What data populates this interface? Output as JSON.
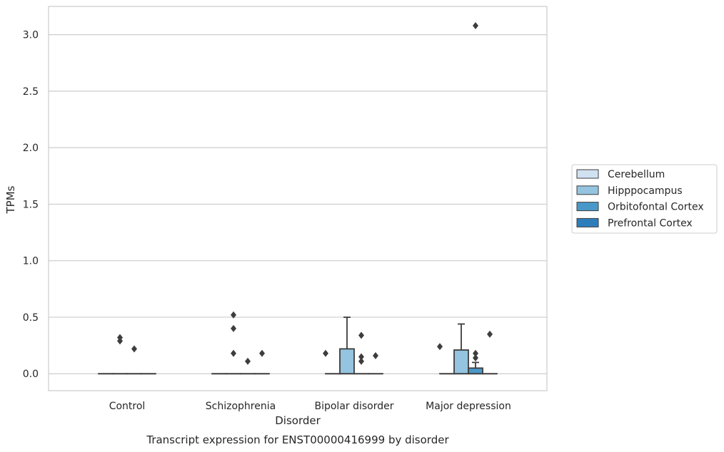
{
  "chart_data": {
    "type": "boxplot",
    "title": "",
    "caption": "Transcript expression for ENST00000416999 by disorder",
    "xlabel": "Disorder",
    "ylabel": "TPMs",
    "ylim": [
      -0.15,
      3.25
    ],
    "yticks": [
      0.0,
      0.5,
      1.0,
      1.5,
      2.0,
      2.5,
      3.0
    ],
    "ytick_labels": [
      "0.0",
      "0.5",
      "1.0",
      "1.5",
      "2.0",
      "2.5",
      "3.0"
    ],
    "grid": "horizontal",
    "legend_position": "right",
    "categories": [
      "Control",
      "Schizophrenia",
      "Bipolar disorder",
      "Major depression"
    ],
    "series": [
      {
        "name": "Cerebellum",
        "color": "#d0e1f2",
        "boxes": [
          {
            "q1": 0,
            "median": 0,
            "q3": 0,
            "whisker_low": 0,
            "whisker_high": 0,
            "outliers": []
          },
          {
            "q1": 0,
            "median": 0,
            "q3": 0,
            "whisker_low": 0,
            "whisker_high": 0,
            "outliers": []
          },
          {
            "q1": 0,
            "median": 0,
            "q3": 0,
            "whisker_low": 0,
            "whisker_high": 0,
            "outliers": []
          },
          {
            "q1": 0,
            "median": 0,
            "q3": 0,
            "whisker_low": 0,
            "whisker_high": 0,
            "outliers": []
          }
        ]
      },
      {
        "name": "Hipppocampus",
        "color": "#94c4df",
        "boxes": [
          {
            "q1": 0,
            "median": 0,
            "q3": 0,
            "whisker_low": 0,
            "whisker_high": 0,
            "outliers": [
              0.32,
              0.29
            ]
          },
          {
            "q1": 0,
            "median": 0,
            "q3": 0,
            "whisker_low": 0,
            "whisker_high": 0,
            "outliers": [
              0.52,
              0.4,
              0.18
            ]
          },
          {
            "q1": 0,
            "median": 0,
            "q3": 0.22,
            "whisker_low": 0,
            "whisker_high": 0.5,
            "outliers": []
          },
          {
            "q1": 0,
            "median": 0,
            "q3": 0.21,
            "whisker_low": 0,
            "whisker_high": 0.44,
            "outliers": []
          }
        ]
      },
      {
        "name": "Orbitofontal Cortex",
        "color": "#4a98c9",
        "boxes": [
          {
            "q1": 0,
            "median": 0,
            "q3": 0,
            "whisker_low": 0,
            "whisker_high": 0,
            "outliers": [
              0.22
            ]
          },
          {
            "q1": 0,
            "median": 0,
            "q3": 0,
            "whisker_low": 0,
            "whisker_high": 0,
            "outliers": [
              0.11
            ]
          },
          {
            "q1": 0,
            "median": 0,
            "q3": 0,
            "whisker_low": 0,
            "whisker_high": 0,
            "outliers": [
              0.34,
              0.15,
              0.11
            ]
          },
          {
            "q1": 0,
            "median": 0,
            "q3": 0.05,
            "whisker_low": 0,
            "whisker_high": 0.1,
            "outliers": [
              3.08,
              0.18,
              0.14
            ]
          }
        ]
      },
      {
        "name": "Prefrontal Cortex",
        "color": "#2e7ebc",
        "boxes": [
          {
            "q1": 0,
            "median": 0,
            "q3": 0,
            "whisker_low": 0,
            "whisker_high": 0,
            "outliers": []
          },
          {
            "q1": 0,
            "median": 0,
            "q3": 0,
            "whisker_low": 0,
            "whisker_high": 0,
            "outliers": [
              0.18
            ]
          },
          {
            "q1": 0,
            "median": 0,
            "q3": 0,
            "whisker_low": 0,
            "whisker_high": 0,
            "outliers": [
              0.16
            ]
          },
          {
            "q1": 0,
            "median": 0,
            "q3": 0,
            "whisker_low": 0,
            "whisker_high": 0,
            "outliers": [
              0.35
            ]
          }
        ]
      }
    ],
    "extra_outliers": [
      {
        "category_index": 2,
        "series_offset": -0.5,
        "value": 0.18
      },
      {
        "category_index": 3,
        "series_offset": -0.5,
        "value": 0.24
      }
    ]
  }
}
